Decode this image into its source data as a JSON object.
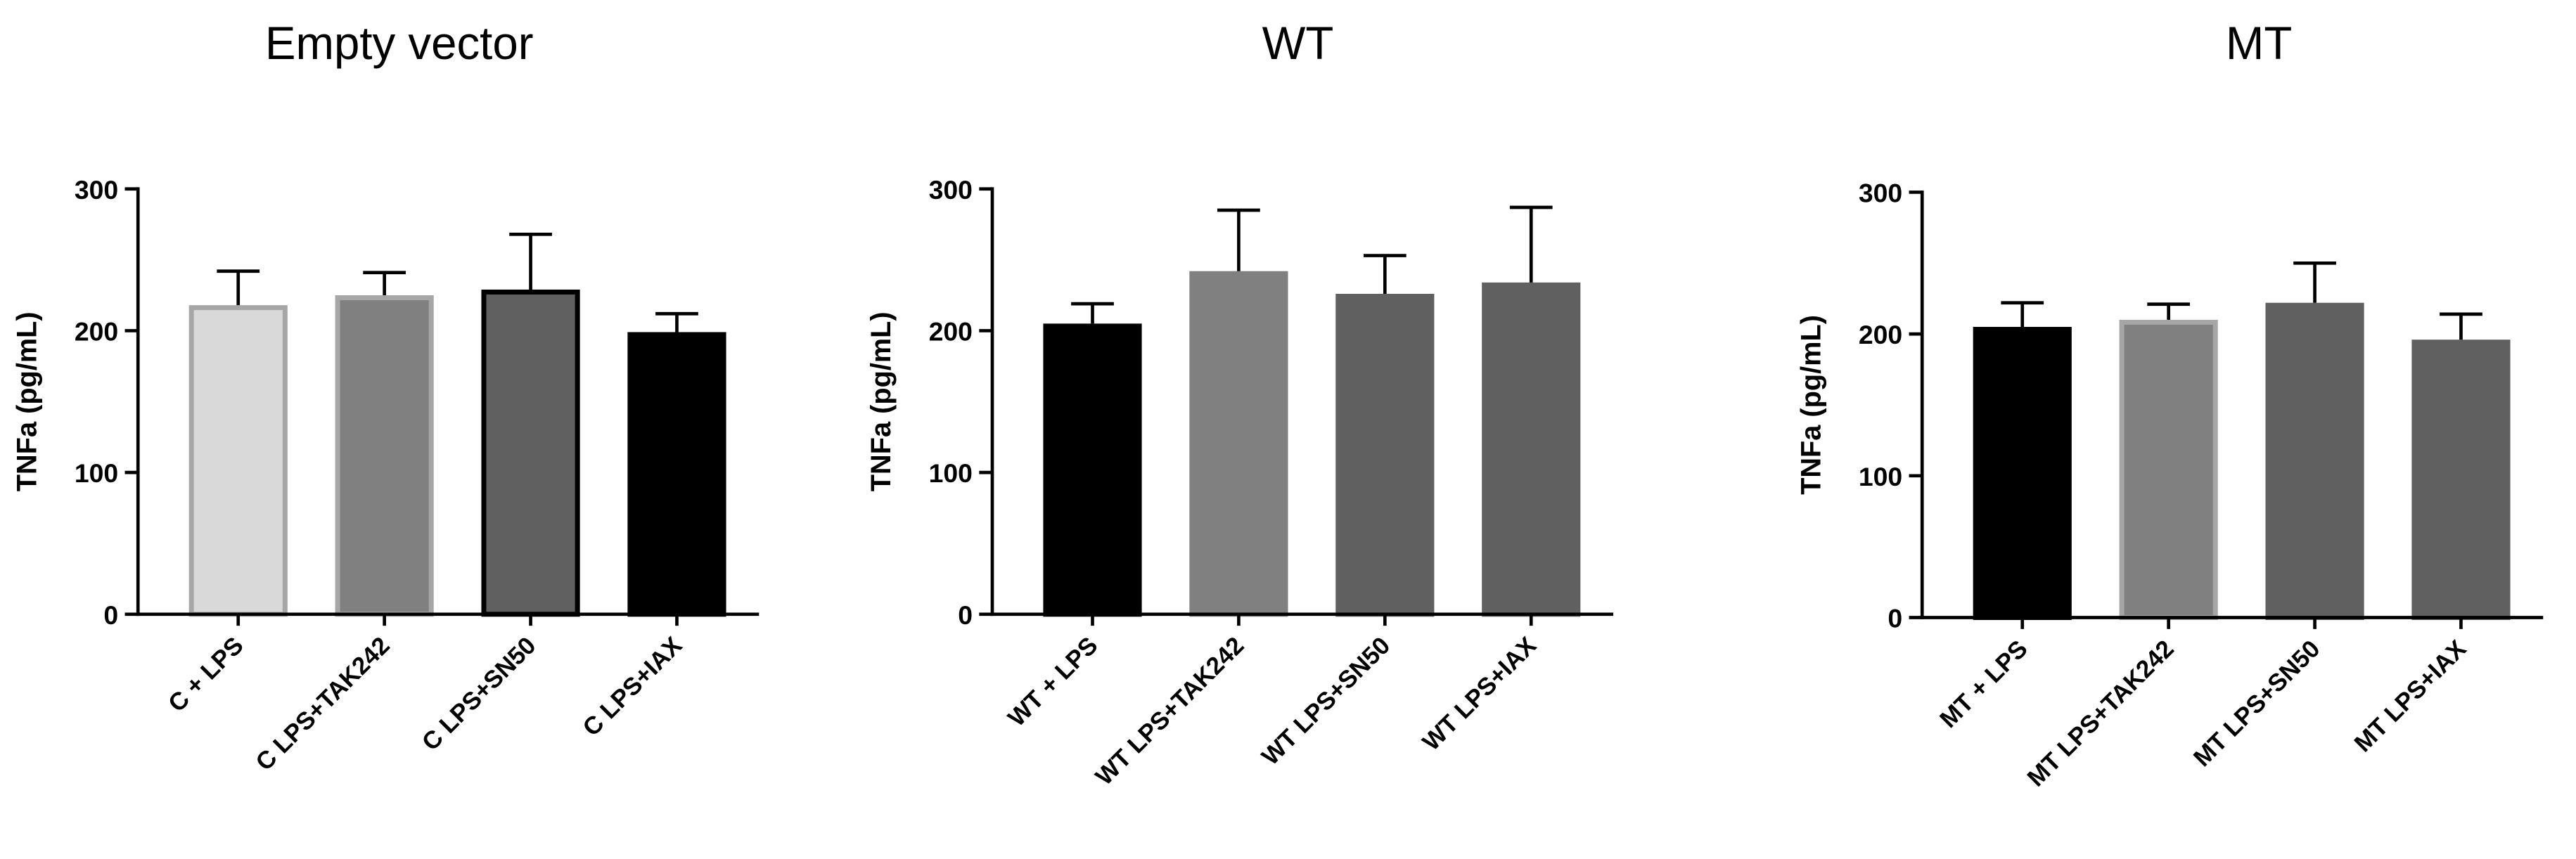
{
  "chart_data": [
    {
      "type": "bar",
      "title": "Empty vector",
      "ylabel": "TNFa (pg/mL)",
      "categories": [
        "C + LPS",
        "C LPS+TAK242",
        "C LPS+SN50",
        "C LPS+IAX"
      ],
      "values": [
        218,
        225,
        229,
        199
      ],
      "errors": [
        24,
        16,
        39,
        13
      ],
      "colors": [
        "#d9d9d9",
        "#808080",
        "#606060",
        "#000000"
      ],
      "edgecolors": [
        "#a6a6a6",
        "#a6a6a6",
        "#000000",
        "#000000"
      ],
      "ylim": [
        0,
        300
      ],
      "yticks": [
        0,
        100,
        200,
        300
      ]
    },
    {
      "type": "bar",
      "title": "WT",
      "ylabel": "TNFa (pg/mL)",
      "categories": [
        "WT + LPS",
        "WT LPS+TAK242",
        "WT LPS+SN50",
        "WT LPS+IAX"
      ],
      "values": [
        205,
        242,
        226,
        234
      ],
      "errors": [
        14,
        43,
        27,
        53
      ],
      "colors": [
        "#000000",
        "#808080",
        "#606060",
        "#606060"
      ],
      "edgecolors": [
        "#000000",
        "#808080",
        "#606060",
        "#606060"
      ],
      "ylim": [
        0,
        300
      ],
      "yticks": [
        0,
        100,
        200,
        300
      ]
    },
    {
      "type": "bar",
      "title": "MT",
      "ylabel": "TNFa (pg/mL)",
      "categories": [
        "MT + LPS",
        "MT LPS+TAK242",
        "MT LPS+SN50",
        "MT LPS+IAX"
      ],
      "values": [
        205,
        210,
        222,
        196
      ],
      "errors": [
        17,
        11,
        28,
        18
      ],
      "colors": [
        "#000000",
        "#808080",
        "#606060",
        "#606060"
      ],
      "edgecolors": [
        "#000000",
        "#a6a6a6",
        "#606060",
        "#606060"
      ],
      "ylim": [
        0,
        300
      ],
      "yticks": [
        0,
        100,
        200,
        300
      ]
    }
  ]
}
